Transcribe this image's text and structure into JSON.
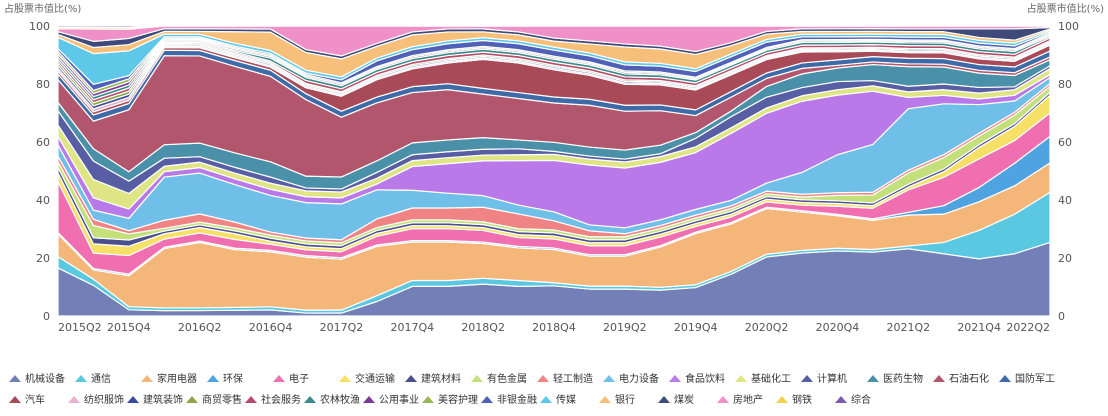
{
  "chart_data": {
    "type": "area",
    "stacked": true,
    "title": "",
    "ylabel_left": "占股票市值比(%)",
    "ylabel_right": "占股票市值比(%)",
    "ylim": [
      0,
      100
    ],
    "yticks": [
      0,
      20,
      40,
      60,
      80,
      100
    ],
    "grid": false,
    "legend_position": "bottom",
    "x": [
      "2015Q2",
      "2015Q3",
      "2015Q4",
      "2016Q1",
      "2016Q2",
      "2016Q3",
      "2016Q4",
      "2017Q1",
      "2017Q2",
      "2017Q3",
      "2017Q4",
      "2018Q1",
      "2018Q2",
      "2018Q3",
      "2018Q4",
      "2019Q1",
      "2019Q2",
      "2019Q3",
      "2019Q4",
      "2020Q1",
      "2020Q2",
      "2020Q3",
      "2020Q4",
      "2021Q1",
      "2021Q2",
      "2021Q3",
      "2021Q4",
      "2022Q1",
      "2022Q2"
    ],
    "xticks": [
      "2015Q2",
      "2015Q4",
      "2016Q2",
      "2016Q4",
      "2017Q2",
      "2017Q4",
      "2018Q2",
      "2018Q4",
      "2019Q2",
      "2019Q4",
      "2020Q2",
      "2020Q4",
      "2021Q2",
      "2021Q4",
      "2022Q2"
    ],
    "series": [
      {
        "name": "机械设备",
        "color": "#7380b8",
        "values": [
          17,
          10,
          2,
          2,
          2,
          2,
          2,
          1,
          1,
          5,
          10,
          10,
          11,
          10,
          10,
          9,
          9,
          9,
          10,
          15,
          22,
          23,
          24,
          24,
          24,
          22,
          20,
          22,
          25
        ]
      },
      {
        "name": "通信",
        "color": "#5ac8e0",
        "values": [
          4,
          2,
          1,
          1,
          1,
          1,
          1,
          1,
          1,
          2,
          2,
          2,
          2,
          2,
          1,
          1,
          1,
          1,
          1,
          1,
          1,
          1,
          1,
          1,
          1,
          4,
          10,
          14,
          17
        ]
      },
      {
        "name": "家用电器",
        "color": "#f5b679",
        "values": [
          8,
          3,
          10,
          22,
          24,
          20,
          18,
          18,
          17,
          17,
          13,
          13,
          12,
          11,
          11,
          10,
          10,
          14,
          18,
          17,
          17,
          14,
          12,
          11,
          11,
          10,
          10,
          10,
          10
        ]
      },
      {
        "name": "环保",
        "color": "#4fa3e0",
        "values": [
          0.5,
          0.5,
          0.5,
          0.5,
          0.5,
          0.5,
          0.5,
          0.5,
          0.5,
          0.5,
          0.5,
          0.5,
          0.5,
          0.5,
          0.5,
          0.5,
          0.5,
          0.5,
          0.5,
          0.5,
          0.5,
          0.5,
          0.5,
          0.5,
          1,
          3,
          5,
          8,
          9
        ]
      },
      {
        "name": "电子",
        "color": "#f06fb0",
        "values": [
          18,
          5,
          6,
          3,
          3,
          3,
          2,
          2,
          2,
          3,
          4,
          4,
          4,
          3,
          3,
          3,
          3,
          3,
          2,
          2,
          2,
          2,
          3,
          4,
          8,
          10,
          10,
          8,
          8
        ]
      },
      {
        "name": "交通运输",
        "color": "#f7e066",
        "values": [
          3,
          3,
          3,
          2,
          2,
          2,
          1,
          1,
          1,
          1,
          1,
          1,
          1,
          1,
          1,
          1,
          1,
          1,
          1,
          1,
          1,
          1,
          1,
          1,
          1,
          2,
          4,
          5,
          6
        ]
      },
      {
        "name": "建筑材料",
        "color": "#4b4f8c",
        "values": [
          2,
          2,
          2,
          1,
          1,
          1,
          1,
          1,
          1,
          1,
          1,
          1,
          1,
          1,
          1,
          1,
          1,
          1,
          1,
          1,
          1,
          1,
          1,
          1,
          1,
          1,
          1,
          1,
          1
        ]
      },
      {
        "name": "有色金属",
        "color": "#c3e07a",
        "values": [
          2,
          4,
          2,
          1,
          1,
          1,
          1,
          1,
          1,
          1,
          1,
          1,
          1,
          1,
          1,
          1,
          1,
          1,
          1,
          1,
          1,
          1,
          2,
          3,
          4,
          4,
          3,
          3,
          2
        ]
      },
      {
        "name": "轻工制造",
        "color": "#f08484",
        "values": [
          2,
          2,
          1,
          3,
          3,
          2,
          1,
          1,
          1,
          3,
          4,
          4,
          5,
          5,
          3,
          2,
          1,
          1,
          1,
          1,
          1,
          1,
          1,
          1,
          1,
          1,
          1,
          1,
          1
        ]
      },
      {
        "name": "电力设备",
        "color": "#6fbfe8",
        "values": [
          4,
          3,
          4,
          16,
          15,
          13,
          12,
          12,
          12,
          10,
          6,
          5,
          4,
          3,
          3,
          2,
          2,
          2,
          2,
          2,
          3,
          8,
          14,
          18,
          22,
          18,
          10,
          4,
          2
        ]
      },
      {
        "name": "食品饮料",
        "color": "#b979e8",
        "values": [
          3,
          4,
          3,
          2,
          2,
          2,
          2,
          2,
          2,
          2,
          8,
          10,
          12,
          15,
          17,
          20,
          20,
          20,
          20,
          24,
          26,
          26,
          22,
          20,
          4,
          3,
          2,
          2,
          1
        ]
      },
      {
        "name": "基础化工",
        "color": "#dfe585",
        "values": [
          4,
          6,
          5,
          2,
          2,
          2,
          2,
          2,
          2,
          2,
          2,
          2,
          2,
          2,
          2,
          2,
          2,
          2,
          2,
          2,
          2,
          2,
          2,
          2,
          2,
          2,
          2,
          2,
          2
        ]
      },
      {
        "name": "计算机",
        "color": "#575ea3",
        "values": [
          5,
          6,
          4,
          3,
          2,
          2,
          2,
          1,
          1,
          2,
          2,
          2,
          2,
          2,
          1,
          1,
          1,
          1,
          3,
          4,
          4,
          3,
          3,
          2,
          2,
          2,
          2,
          1,
          1
        ]
      },
      {
        "name": "医药生物",
        "color": "#4a90a8",
        "values": [
          3,
          4,
          3,
          5,
          5,
          5,
          5,
          4,
          4,
          4,
          4,
          4,
          4,
          3,
          3,
          3,
          3,
          3,
          2,
          2,
          4,
          5,
          5,
          6,
          7,
          6,
          5,
          4,
          2
        ]
      },
      {
        "name": "石油石化",
        "color": "#b2566e",
        "values": [
          8,
          9,
          20,
          33,
          32,
          30,
          28,
          26,
          20,
          20,
          17,
          17,
          15,
          14,
          13,
          14,
          13,
          12,
          6,
          5,
          3,
          2,
          1,
          1,
          1,
          1,
          1,
          1,
          1
        ]
      },
      {
        "name": "国防军工",
        "color": "#3e6aa8",
        "values": [
          2,
          2,
          2,
          2,
          2,
          2,
          2,
          2,
          2,
          2,
          2,
          2,
          2,
          2,
          2,
          2,
          2,
          2,
          2,
          2,
          2,
          2,
          2,
          2,
          2,
          2,
          2,
          2,
          2
        ]
      },
      {
        "name": "汽车",
        "color": "#a84a58",
        "values": [
          1,
          1,
          1,
          1,
          1,
          1,
          1,
          2,
          5,
          6,
          6,
          7,
          10,
          10,
          9,
          8,
          7,
          7,
          7,
          6,
          5,
          4,
          3,
          2,
          2,
          2,
          2,
          2,
          2
        ]
      },
      {
        "name": "纺织服饰",
        "color": "#e8b3d3",
        "values": [
          1,
          1,
          1,
          0.5,
          0.5,
          0.5,
          0.5,
          0.5,
          0.5,
          0.5,
          0.5,
          0.5,
          0.5,
          0.5,
          0.5,
          0.5,
          0.5,
          0.5,
          0.5,
          0.5,
          0.5,
          0.5,
          0.5,
          0.5,
          0.5,
          0.5,
          0.5,
          0.5,
          0.5
        ]
      },
      {
        "name": "建筑装饰",
        "color": "#3c4a9e",
        "values": [
          1,
          1,
          1,
          0.5,
          0.5,
          0.5,
          0.5,
          0.5,
          0.5,
          0.5,
          0.5,
          0.5,
          0.5,
          0.5,
          0.5,
          0.5,
          0.5,
          0.5,
          0.5,
          0.5,
          0.5,
          0.5,
          0.5,
          0.5,
          0.5,
          0.5,
          0.5,
          0.5,
          0.5
        ]
      },
      {
        "name": "商贸零售",
        "color": "#8aa848",
        "values": [
          1,
          1,
          1,
          0.5,
          0.5,
          0.5,
          0.5,
          0.5,
          0.5,
          0.5,
          0.5,
          0.5,
          0.5,
          0.5,
          0.5,
          0.5,
          0.5,
          0.5,
          0.5,
          0.5,
          0.5,
          0.5,
          0.5,
          0.5,
          0.5,
          0.5,
          0.5,
          0.5,
          0.5
        ]
      },
      {
        "name": "社会服务",
        "color": "#b84a6a",
        "values": [
          1,
          1,
          1,
          0.5,
          0.5,
          0.5,
          0.5,
          1,
          1,
          1,
          1,
          1,
          1,
          1,
          1,
          1,
          1,
          1,
          1,
          1,
          1,
          1,
          1,
          1,
          1,
          1,
          1,
          1,
          1
        ]
      },
      {
        "name": "农林牧渔",
        "color": "#3a8a8a",
        "values": [
          1,
          1,
          1,
          0.5,
          0.5,
          0.5,
          1,
          1,
          1,
          1,
          1,
          1,
          1,
          1,
          1,
          1,
          1,
          1,
          1,
          1,
          1,
          1,
          1,
          1,
          1,
          1,
          1,
          1,
          0.5
        ]
      },
      {
        "name": "公用事业",
        "color": "#7c3a9a",
        "values": [
          1,
          1,
          1,
          0.5,
          0.5,
          0.5,
          0.5,
          0.5,
          0.5,
          0.5,
          0.5,
          0.5,
          0.5,
          0.5,
          0.5,
          0.5,
          0.5,
          0.5,
          0.5,
          0.5,
          0.5,
          0.5,
          0.5,
          0.5,
          0.5,
          0.5,
          0.5,
          0.5,
          0.5
        ]
      },
      {
        "name": "美容护理",
        "color": "#9ab858",
        "values": [
          1,
          1,
          1,
          0.5,
          0.5,
          0.5,
          0.5,
          0.5,
          0.5,
          0.5,
          0.5,
          0.5,
          0.5,
          0.5,
          0.5,
          0.5,
          0.5,
          0.5,
          0.5,
          0.5,
          0.5,
          0.5,
          0.5,
          0.5,
          0.5,
          0.5,
          0.5,
          0.5,
          0.5
        ]
      },
      {
        "name": "非银金融",
        "color": "#5060b8",
        "values": [
          1,
          2,
          1,
          0.5,
          0.5,
          0.5,
          0.5,
          0.5,
          1,
          2,
          2,
          2,
          2,
          2,
          2,
          2,
          2,
          2,
          2,
          2,
          2,
          1,
          1,
          1,
          1,
          1,
          1,
          1,
          0.5
        ]
      },
      {
        "name": "传媒",
        "color": "#5ec8e8",
        "values": [
          4,
          10,
          8,
          1,
          1,
          1,
          1,
          1,
          1,
          1,
          1,
          1,
          1,
          1,
          1,
          1,
          1,
          1,
          1,
          1,
          1,
          1,
          1,
          1,
          1,
          1,
          1,
          1,
          0.5
        ]
      },
      {
        "name": "银行",
        "color": "#f7c07a",
        "values": [
          1,
          2,
          2,
          1,
          1,
          4,
          6,
          6,
          6,
          4,
          4,
          3,
          2,
          2,
          2,
          3,
          5,
          5,
          5,
          3,
          2,
          1,
          1,
          1,
          1,
          1,
          1,
          1,
          0.5
        ]
      },
      {
        "name": "煤炭",
        "color": "#404a7a",
        "values": [
          1,
          2,
          2,
          1,
          1,
          1,
          1,
          1,
          1,
          1,
          1,
          1,
          1,
          1,
          1,
          1,
          1,
          1,
          1,
          1,
          1,
          1,
          1,
          1,
          1,
          1,
          3,
          4,
          0.5
        ]
      },
      {
        "name": "房地产",
        "color": "#f090c8",
        "values": [
          1,
          4,
          3,
          1,
          1,
          1,
          1,
          8,
          10,
          6,
          2,
          1,
          1,
          2,
          4,
          5,
          6,
          7,
          9,
          6,
          2,
          1,
          1,
          1,
          1,
          1,
          1,
          1,
          0.5
        ]
      },
      {
        "name": "钢铁",
        "color": "#f2d44a",
        "values": [
          0.5,
          0.5,
          0.5,
          0,
          0,
          0,
          0,
          0,
          0,
          0,
          0,
          0,
          0,
          0,
          0,
          0,
          0,
          0,
          0,
          0,
          0,
          0,
          0,
          0,
          0,
          0,
          0,
          0,
          0
        ]
      },
      {
        "name": "综合",
        "color": "#7a5ab0",
        "values": [
          0.5,
          0.5,
          0.5,
          0,
          0,
          0,
          0,
          0,
          0,
          0,
          0,
          0,
          0,
          0,
          0,
          0,
          0,
          0,
          0,
          0,
          0,
          0,
          0,
          0,
          0,
          0,
          0,
          0,
          0
        ]
      }
    ]
  }
}
